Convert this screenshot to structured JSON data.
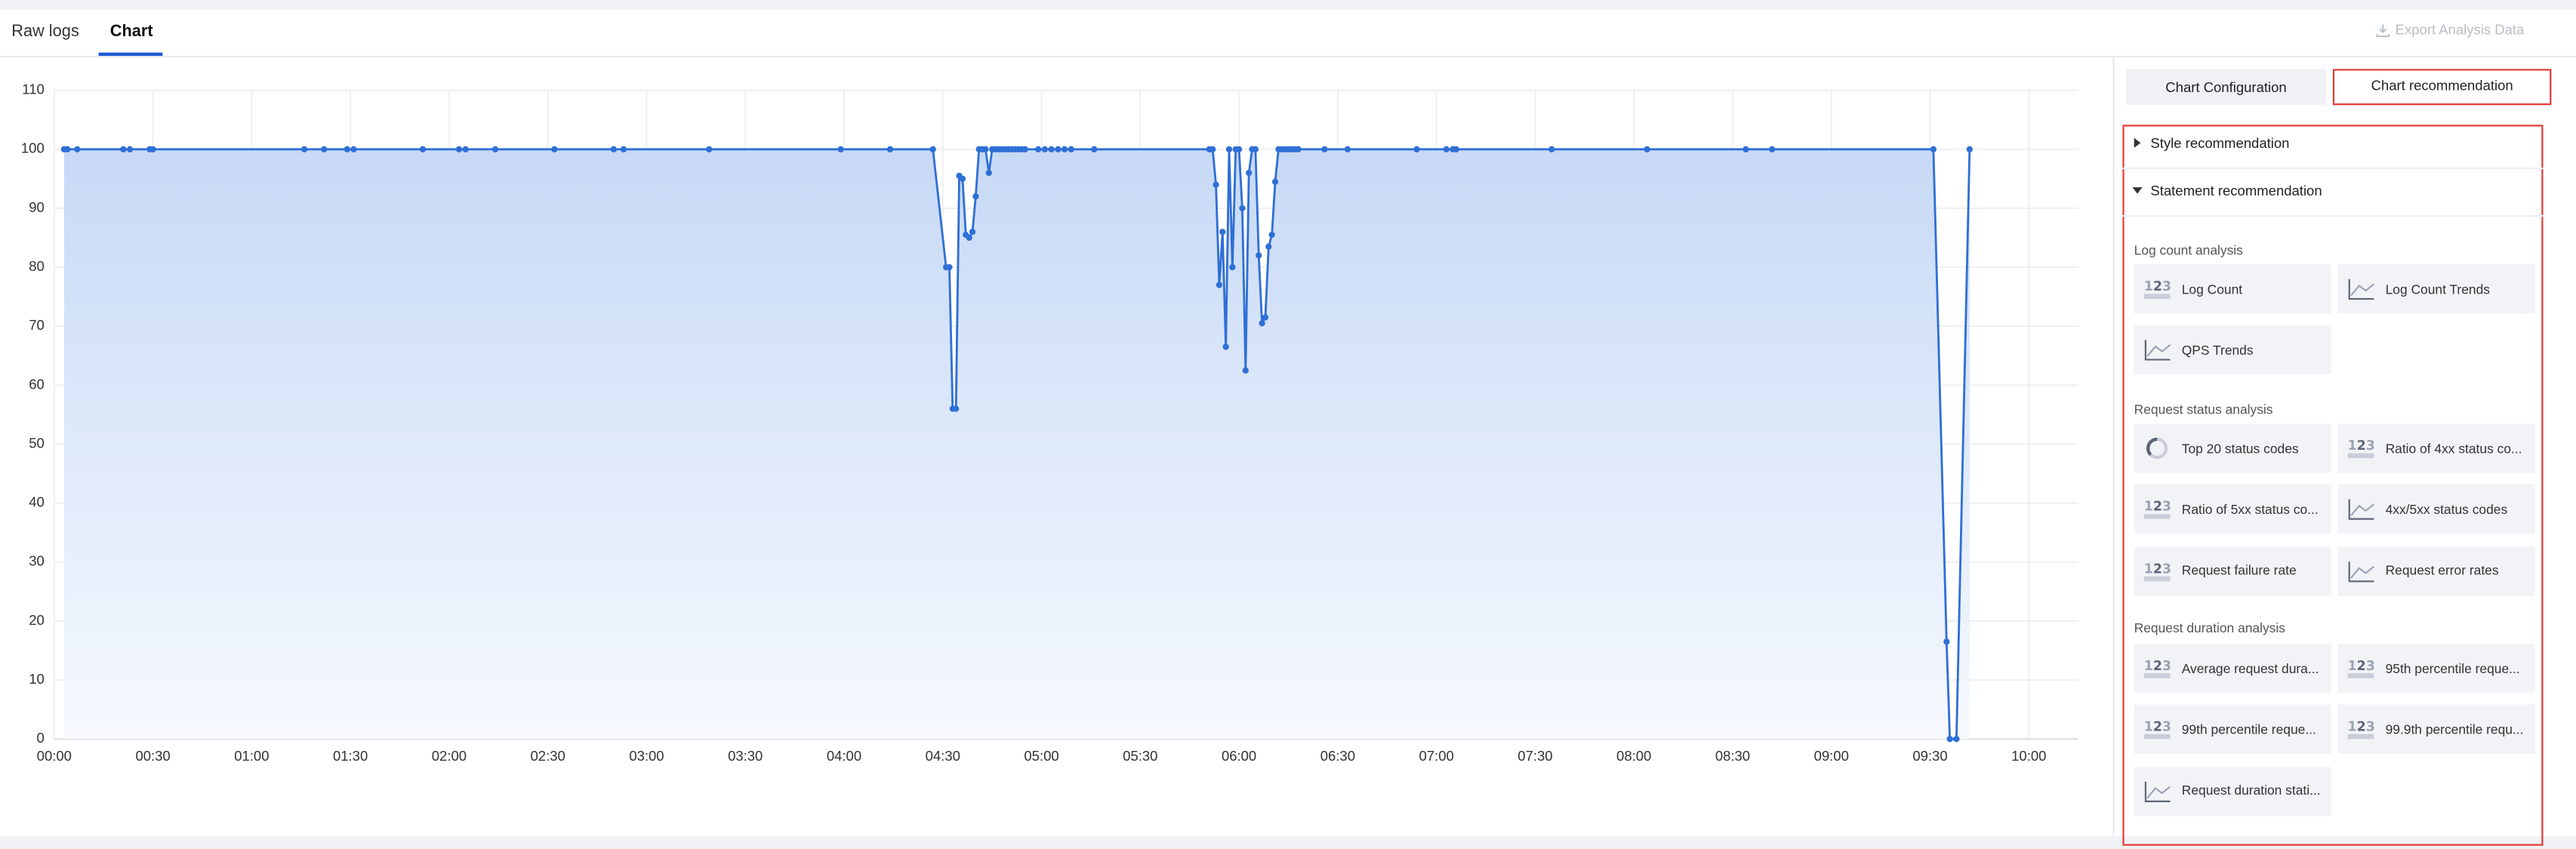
{
  "tabs": [
    "Raw logs",
    "Chart"
  ],
  "export_button": "Export Analysis Data",
  "chart_data": {
    "type": "line",
    "x": [
      "00:03",
      "00:04",
      "00:07",
      "00:21",
      "00:23",
      "00:29",
      "00:30",
      "01:16",
      "01:22",
      "01:29",
      "01:31",
      "01:52",
      "02:03",
      "02:05",
      "02:14",
      "02:32",
      "02:50",
      "02:53",
      "03:19",
      "03:59",
      "04:14",
      "04:27",
      "04:31",
      "04:32",
      "04:33",
      "04:34",
      "04:35",
      "04:36",
      "04:37",
      "04:38",
      "04:39",
      "04:40",
      "04:41",
      "04:42",
      "04:43",
      "04:44",
      "04:45",
      "04:46",
      "04:47",
      "04:48",
      "04:49",
      "04:50",
      "04:51",
      "04:52",
      "04:53",
      "04:54",
      "04:55",
      "04:59",
      "05:01",
      "05:03",
      "05:05",
      "05:07",
      "05:09",
      "05:16",
      "05:51",
      "05:52",
      "05:53",
      "05:54",
      "05:55",
      "05:56",
      "05:57",
      "05:58",
      "05:59",
      "06:00",
      "06:01",
      "06:02",
      "06:03",
      "06:04",
      "06:05",
      "06:06",
      "06:07",
      "06:08",
      "06:09",
      "06:10",
      "06:11",
      "06:12",
      "06:13",
      "06:14",
      "06:15",
      "06:16",
      "06:17",
      "06:18",
      "06:26",
      "06:33",
      "06:54",
      "07:03",
      "07:05",
      "07:06",
      "07:35",
      "08:04",
      "08:34",
      "08:42",
      "09:31",
      "09:35",
      "09:36",
      "09:38",
      "09:42"
    ],
    "values": [
      100,
      100,
      100,
      100,
      100,
      100,
      100,
      100,
      100,
      100,
      100,
      100,
      100,
      100,
      100,
      100,
      100,
      100,
      100,
      100,
      100,
      100,
      80,
      80,
      56,
      56,
      95.5,
      95,
      85.5,
      85,
      86,
      92,
      100,
      100,
      100,
      96,
      100,
      100,
      100,
      100,
      100,
      100,
      100,
      100,
      100,
      100,
      100,
      100,
      100,
      100,
      100,
      100,
      100,
      100,
      100,
      100,
      94,
      77,
      86,
      66.5,
      100,
      80,
      100,
      100,
      90,
      62.5,
      96,
      100,
      100,
      82,
      70.5,
      71.5,
      83.5,
      85.5,
      94.5,
      100,
      100,
      100,
      100,
      100,
      100,
      100,
      100,
      100,
      100,
      100,
      100,
      100,
      100,
      100,
      100,
      100,
      100,
      16.5,
      0,
      0,
      100
    ],
    "color": "#2f6fd6",
    "xlim": [
      "00:00",
      "10:15"
    ],
    "xticks": [
      "00:00",
      "00:30",
      "01:00",
      "01:30",
      "02:00",
      "02:30",
      "03:00",
      "03:30",
      "04:00",
      "04:30",
      "05:00",
      "05:30",
      "06:00",
      "06:30",
      "07:00",
      "07:30",
      "08:00",
      "08:30",
      "09:00",
      "09:30",
      "10:00"
    ],
    "ylim": [
      0,
      110
    ],
    "yticks": [
      0,
      10,
      20,
      30,
      40,
      50,
      60,
      70,
      80,
      90,
      100,
      110
    ],
    "grid": true
  },
  "panel": {
    "buttons": [
      "Chart Configuration",
      "Chart recommendation"
    ],
    "sections": [
      {
        "title": "Style recommendation",
        "expanded": false
      },
      {
        "title": "Statement recommendation",
        "expanded": true
      }
    ],
    "groups": [
      {
        "title": "Log count analysis",
        "items": [
          "Log Count",
          "Log Count Trends",
          "QPS Trends"
        ]
      },
      {
        "title": "Request status analysis",
        "items": [
          "Top 20 status codes",
          "Ratio of 4xx status co...",
          "Ratio of 5xx status co...",
          "4xx/5xx status codes",
          "Request failure rate",
          "Request error rates"
        ]
      },
      {
        "title": "Request duration analysis",
        "items": [
          "Average request dura...",
          "95th percentile reque...",
          "99th percentile reque...",
          "99.9th percentile requ...",
          "Request duration stati..."
        ]
      }
    ]
  }
}
